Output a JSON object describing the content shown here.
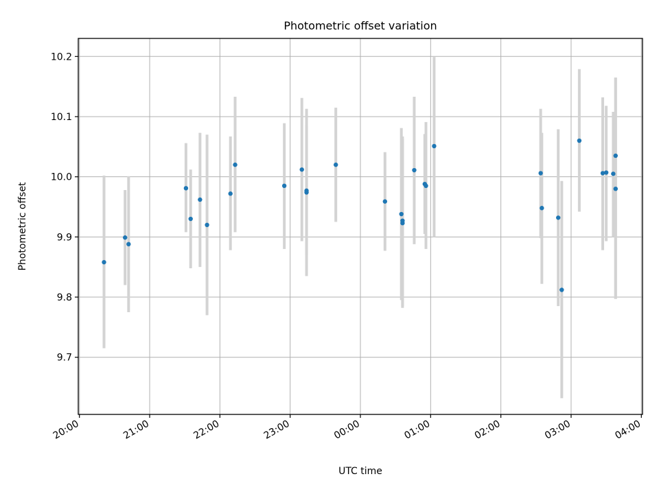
{
  "chart_data": {
    "type": "scatter",
    "title": "Photometric offset variation",
    "xlabel": "UTC time",
    "ylabel": "Photometric offset",
    "x_ticks": [
      "20:00",
      "21:00",
      "22:00",
      "23:00",
      "00:00",
      "01:00",
      "02:00",
      "03:00",
      "04:00"
    ],
    "y_ticks": [
      "9.7",
      "9.8",
      "9.9",
      "10.0",
      "10.1",
      "10.2"
    ],
    "x_range": [
      "19:59",
      "04:01"
    ],
    "ylim": [
      9.605,
      10.23
    ],
    "grid": true,
    "colors": {
      "point": "#1f77b4",
      "errorbar": "#d3d3d3",
      "grid": "#b0b0b0"
    },
    "points": [
      {
        "t": "20:21",
        "y": 9.858,
        "lo": 9.715,
        "hi": 10.002
      },
      {
        "t": "20:39",
        "y": 9.899,
        "lo": 9.82,
        "hi": 9.978
      },
      {
        "t": "20:42",
        "y": 9.888,
        "lo": 9.775,
        "hi": 10.001
      },
      {
        "t": "21:31",
        "y": 9.981,
        "lo": 9.908,
        "hi": 10.056
      },
      {
        "t": "21:35",
        "y": 9.93,
        "lo": 9.848,
        "hi": 10.012
      },
      {
        "t": "21:43",
        "y": 9.962,
        "lo": 9.85,
        "hi": 10.073
      },
      {
        "t": "21:49",
        "y": 9.92,
        "lo": 9.77,
        "hi": 10.07
      },
      {
        "t": "22:09",
        "y": 9.972,
        "lo": 9.878,
        "hi": 10.067
      },
      {
        "t": "22:13",
        "y": 10.02,
        "lo": 9.908,
        "hi": 10.133
      },
      {
        "t": "22:55",
        "y": 9.985,
        "lo": 9.88,
        "hi": 10.089
      },
      {
        "t": "23:10",
        "y": 10.012,
        "lo": 9.893,
        "hi": 10.131
      },
      {
        "t": "23:14",
        "y": 9.974,
        "lo": 9.835,
        "hi": 10.113
      },
      {
        "t": "23:14",
        "y": 9.977,
        "lo": 9.87,
        "hi": 10.085
      },
      {
        "t": "23:39",
        "y": 10.02,
        "lo": 9.925,
        "hi": 10.115
      },
      {
        "t": "00:21",
        "y": 9.959,
        "lo": 9.877,
        "hi": 10.041
      },
      {
        "t": "00:35",
        "y": 9.938,
        "lo": 9.795,
        "hi": 10.081
      },
      {
        "t": "00:36",
        "y": 9.927,
        "lo": 9.785,
        "hi": 10.067
      },
      {
        "t": "00:36",
        "y": 9.923,
        "lo": 9.782,
        "hi": 10.063
      },
      {
        "t": "00:46",
        "y": 10.011,
        "lo": 9.888,
        "hi": 10.133
      },
      {
        "t": "00:55",
        "y": 9.988,
        "lo": 9.905,
        "hi": 10.071
      },
      {
        "t": "00:56",
        "y": 9.985,
        "lo": 9.88,
        "hi": 10.091
      },
      {
        "t": "01:03",
        "y": 10.051,
        "lo": 9.9,
        "hi": 10.199
      },
      {
        "t": "02:34",
        "y": 10.006,
        "lo": 9.898,
        "hi": 10.113
      },
      {
        "t": "02:35",
        "y": 9.948,
        "lo": 9.822,
        "hi": 10.073
      },
      {
        "t": "02:49",
        "y": 9.932,
        "lo": 9.785,
        "hi": 10.079
      },
      {
        "t": "02:52",
        "y": 9.812,
        "lo": 9.632,
        "hi": 9.993
      },
      {
        "t": "03:07",
        "y": 10.06,
        "lo": 9.942,
        "hi": 10.179
      },
      {
        "t": "03:27",
        "y": 10.006,
        "lo": 9.878,
        "hi": 10.132
      },
      {
        "t": "03:30",
        "y": 10.007,
        "lo": 9.893,
        "hi": 10.118
      },
      {
        "t": "03:36",
        "y": 10.005,
        "lo": 9.9,
        "hi": 10.108
      },
      {
        "t": "03:38",
        "y": 10.035,
        "lo": 9.797,
        "hi": 10.165
      },
      {
        "t": "03:38",
        "y": 9.98,
        "lo": 9.797,
        "hi": 10.165
      }
    ]
  }
}
